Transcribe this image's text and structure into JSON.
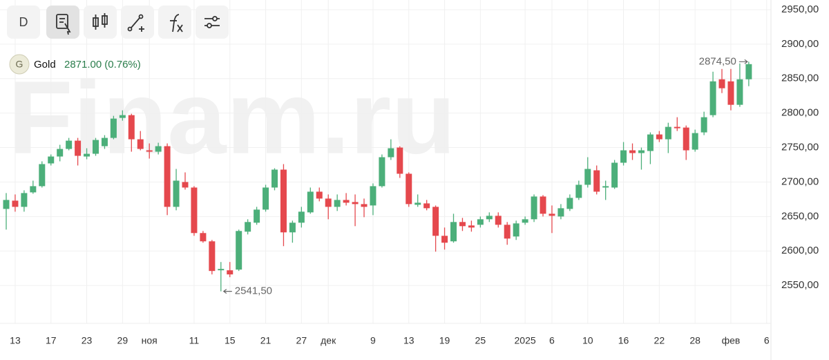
{
  "toolbar": {
    "interval": "D"
  },
  "chart_data": {
    "type": "candlestick",
    "watermark": "Finam.ru",
    "legend": {
      "badge": "G",
      "name": "Gold",
      "price": "2871.00",
      "change": "(0.76%)"
    },
    "categories": [
      null,
      "13",
      null,
      null,
      null,
      "17",
      null,
      null,
      null,
      "23",
      null,
      null,
      null,
      "29",
      null,
      null,
      "ноя",
      null,
      null,
      null,
      null,
      "11",
      null,
      null,
      null,
      "15",
      null,
      null,
      null,
      "21",
      null,
      null,
      null,
      "27",
      null,
      null,
      "дек",
      null,
      null,
      null,
      null,
      "9",
      null,
      null,
      null,
      "13",
      null,
      null,
      null,
      "19",
      null,
      null,
      null,
      "25",
      null,
      null,
      null,
      null,
      "2025",
      null,
      null,
      "6",
      null,
      null,
      null,
      "10",
      null,
      null,
      null,
      "16",
      null,
      null,
      null,
      "22",
      null,
      null,
      null,
      "28",
      null,
      null,
      null,
      "фев",
      null,
      null,
      null,
      "6"
    ],
    "open": [
      2661,
      2673,
      2664,
      2685,
      2694,
      2727,
      2737,
      2748,
      2760,
      2737,
      2741,
      2752,
      2764,
      2793,
      2797,
      2762,
      2746,
      2744,
      2752,
      2664,
      2700,
      2692,
      2626,
      2614,
      2572,
      2572,
      2573,
      2628,
      2641,
      2660,
      2692,
      2718,
      2627,
      2641,
      2656,
      2686,
      2676,
      2664,
      2674,
      2671,
      2668,
      2666,
      2694,
      2736,
      2750,
      2712,
      2667,
      2669,
      2664,
      2622,
      2614,
      2642,
      2637,
      2638,
      2646,
      2651,
      2638,
      2621,
      2641,
      2646,
      2679,
      2654,
      2650,
      2661,
      2677,
      2696,
      2717,
      2692,
      2692,
      2728,
      2746,
      2742,
      2745,
      2769,
      2762,
      2780,
      2779,
      2747,
      2772,
      2797,
      2849,
      2846,
      2812,
      2849,
      null,
      null
    ],
    "high": [
      2684,
      2682,
      2688,
      2702,
      2730,
      2740,
      2754,
      2764,
      2764,
      2749,
      2764,
      2768,
      2796,
      2804,
      2799,
      2774,
      2756,
      2757,
      2756,
      2719,
      2714,
      2694,
      2629,
      2616,
      2584,
      2584,
      2631,
      2646,
      2664,
      2696,
      2720,
      2726,
      2644,
      2664,
      2692,
      2692,
      2682,
      2682,
      2684,
      2682,
      2676,
      2698,
      2740,
      2762,
      2752,
      2714,
      2682,
      2674,
      2666,
      2634,
      2654,
      2648,
      2644,
      2650,
      2656,
      2656,
      2642,
      2644,
      2650,
      2682,
      2681,
      2666,
      2668,
      2682,
      2702,
      2736,
      2724,
      2702,
      2732,
      2758,
      2756,
      2750,
      2772,
      2774,
      2786,
      2794,
      2782,
      2776,
      2802,
      2860,
      2864,
      2864,
      2872,
      2874.5,
      null,
      null
    ],
    "low": [
      2631,
      2657,
      2657,
      2683,
      2692,
      2724,
      2730,
      2746,
      2724,
      2733,
      2738,
      2748,
      2762,
      2789,
      2744,
      2746,
      2734,
      2740,
      2652,
      2659,
      2689,
      2622,
      2612,
      2566,
      2541.5,
      2562,
      2571,
      2624,
      2638,
      2657,
      2688,
      2607,
      2612,
      2634,
      2654,
      2672,
      2646,
      2658,
      2666,
      2636,
      2649,
      2652,
      2692,
      2732,
      2706,
      2664,
      2664,
      2659,
      2599,
      2602,
      2612,
      2629,
      2628,
      2634,
      2642,
      2634,
      2609,
      2616,
      2638,
      2642,
      2650,
      2626,
      2646,
      2658,
      2674,
      2692,
      2682,
      2674,
      2690,
      2724,
      2732,
      2718,
      2726,
      2758,
      2742,
      2774,
      2732,
      2744,
      2768,
      2794,
      2829,
      2804,
      2809,
      2839,
      null,
      null
    ],
    "close": [
      2674,
      2664,
      2684,
      2694,
      2726,
      2737,
      2748,
      2760,
      2738,
      2741,
      2761,
      2764,
      2792,
      2797,
      2762,
      2748,
      2744,
      2752,
      2664,
      2702,
      2692,
      2626,
      2614,
      2571,
      2574,
      2566,
      2629,
      2642,
      2660,
      2692,
      2718,
      2627,
      2641,
      2657,
      2686,
      2676,
      2664,
      2674,
      2670,
      2668,
      2664,
      2694,
      2736,
      2749,
      2712,
      2668,
      2670,
      2662,
      2622,
      2612,
      2642,
      2636,
      2634,
      2646,
      2651,
      2638,
      2618,
      2640,
      2646,
      2679,
      2654,
      2651,
      2662,
      2677,
      2696,
      2719,
      2686,
      2694,
      2728,
      2746,
      2742,
      2746,
      2769,
      2762,
      2780,
      2778,
      2746,
      2771,
      2794,
      2846,
      2836,
      2812,
      2849,
      2871,
      null,
      null
    ],
    "colors": {
      "up": "#4caf7a",
      "down": "#e5484d"
    },
    "ylim": [
      2495,
      2964
    ],
    "yticks": [
      {
        "value": 2550,
        "label": "2550,00"
      },
      {
        "value": 2600,
        "label": "2600,00"
      },
      {
        "value": 2650,
        "label": "2650,00"
      },
      {
        "value": 2700,
        "label": "2700,00"
      },
      {
        "value": 2750,
        "label": "2750,00"
      },
      {
        "value": 2800,
        "label": "2800,00"
      },
      {
        "value": 2850,
        "label": "2850,00"
      },
      {
        "value": 2900,
        "label": "2900,00"
      },
      {
        "value": 2950,
        "label": "2950,00"
      }
    ],
    "annotations": [
      {
        "text": "2874,50",
        "value": 2874.5
      },
      {
        "text": "2541,50",
        "value": 2541.5
      }
    ],
    "grid": true
  }
}
